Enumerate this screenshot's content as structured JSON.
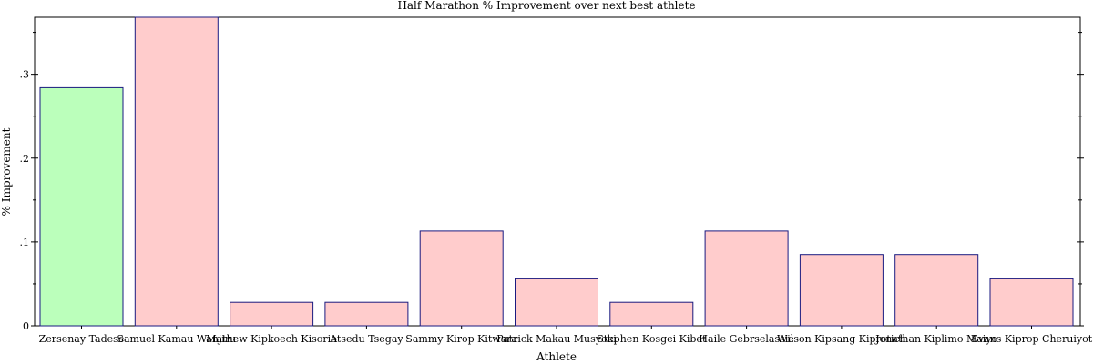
{
  "chart_data": {
    "type": "bar",
    "title": "Half Marathon % Improvement over next best athlete",
    "xlabel": "Athlete",
    "ylabel": "% Improvement",
    "ylim": [
      0,
      0.368
    ],
    "yticks": [
      0,
      0.1,
      0.2,
      0.3
    ],
    "ytick_labels": [
      "0",
      ".1",
      ".2",
      ".3"
    ],
    "categories": [
      "Zersenay Tadese",
      "Samuel Kamau Wanjiru",
      "Mathew Kipkoech Kisorio",
      "Atsedu Tsegay",
      "Sammy Kirop Kitwara",
      "Patrick Makau Musyoki",
      "Stephen Kosgei Kibet",
      "Haile Gebrselassie",
      "Wilson Kipsang Kiprotich",
      "Jonathan Kiplimo Maiyo",
      "Evans Kiprop Cheruiyot"
    ],
    "values": [
      0.284,
      0.368,
      0.028,
      0.028,
      0.113,
      0.056,
      0.028,
      0.113,
      0.085,
      0.085,
      0.056
    ],
    "bar_colors": [
      "#bbffbb",
      "#ffcccc",
      "#ffcccc",
      "#ffcccc",
      "#ffcccc",
      "#ffcccc",
      "#ffcccc",
      "#ffcccc",
      "#ffcccc",
      "#ffcccc",
      "#ffcccc"
    ],
    "bar_stroke": "#1a1a80",
    "grid": false
  }
}
